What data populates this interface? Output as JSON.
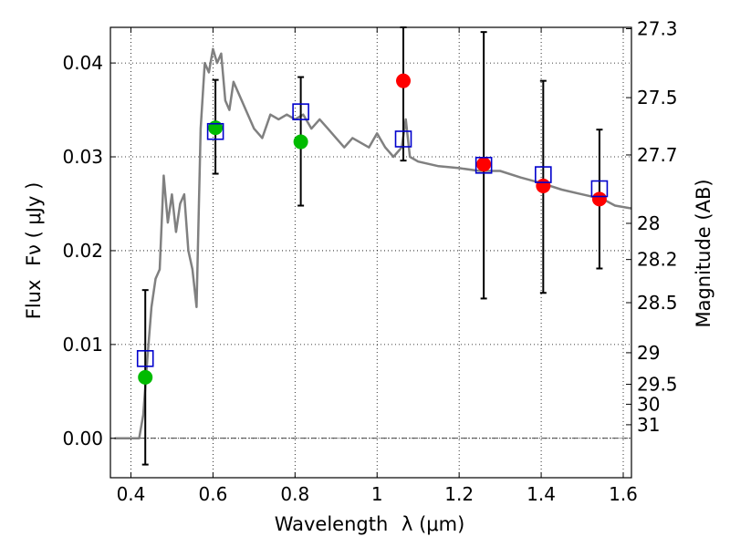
{
  "chart_data": {
    "type": "scatter",
    "title": "",
    "xlabel_text": "Wavelength",
    "xlabel_symbol": "λ (μm)",
    "ylabel_text": "Flux",
    "ylabel_symbol": "Fν ( μJy )",
    "y2label": "Magnitude (AB)",
    "xlim": [
      0.35,
      1.62
    ],
    "ylim": [
      -0.0042,
      0.0438
    ],
    "x_ticks": [
      0.4,
      0.6,
      0.8,
      1.0,
      1.2,
      1.4,
      1.6
    ],
    "x_tick_labels": [
      "0.4",
      "0.6",
      "0.8",
      "1",
      "1.2",
      "1.4",
      "1.6"
    ],
    "y_ticks": [
      0.0,
      0.01,
      0.02,
      0.03,
      0.04
    ],
    "y_tick_labels": [
      "0.00",
      "0.01",
      "0.02",
      "0.03",
      "0.04"
    ],
    "mag_ticks": [
      27.3,
      27.5,
      27.7,
      28,
      28.2,
      28.5,
      29,
      29.5,
      30,
      31
    ],
    "mag_tick_labels": [
      "27.3",
      "27.5",
      "27.7",
      "28",
      "28.2",
      "28.5",
      "29",
      "29.5",
      "30",
      "31"
    ],
    "grid": true,
    "grid_style": "dotted",
    "zero_line": true,
    "colors": {
      "model": "#808080",
      "detection": "#00bb00",
      "measurement": "#ff0000",
      "model_photometry": "#0000cc",
      "errorbar": "#000000"
    },
    "model_spectrum": {
      "x": [
        0.36,
        0.41,
        0.42,
        0.43,
        0.44,
        0.45,
        0.46,
        0.47,
        0.48,
        0.49,
        0.5,
        0.51,
        0.52,
        0.53,
        0.54,
        0.55,
        0.56,
        0.57,
        0.58,
        0.59,
        0.6,
        0.61,
        0.62,
        0.63,
        0.64,
        0.65,
        0.66,
        0.67,
        0.68,
        0.7,
        0.72,
        0.74,
        0.76,
        0.78,
        0.8,
        0.82,
        0.84,
        0.86,
        0.88,
        0.9,
        0.92,
        0.94,
        0.96,
        0.98,
        1.0,
        1.02,
        1.04,
        1.06,
        1.07,
        1.08,
        1.1,
        1.15,
        1.2,
        1.25,
        1.3,
        1.35,
        1.4,
        1.45,
        1.5,
        1.55,
        1.58,
        1.62
      ],
      "y": [
        0.0,
        0.0,
        0.0,
        0.0025,
        0.0085,
        0.014,
        0.017,
        0.018,
        0.028,
        0.023,
        0.026,
        0.022,
        0.025,
        0.026,
        0.02,
        0.018,
        0.014,
        0.033,
        0.04,
        0.039,
        0.0415,
        0.04,
        0.041,
        0.036,
        0.035,
        0.038,
        0.037,
        0.036,
        0.035,
        0.033,
        0.032,
        0.0345,
        0.034,
        0.0345,
        0.034,
        0.0345,
        0.033,
        0.034,
        0.033,
        0.032,
        0.031,
        0.032,
        0.0315,
        0.031,
        0.0325,
        0.031,
        0.03,
        0.031,
        0.034,
        0.03,
        0.0295,
        0.029,
        0.0288,
        0.0285,
        0.0285,
        0.0278,
        0.0272,
        0.0265,
        0.026,
        0.0255,
        0.0248,
        0.0245
      ]
    },
    "series": [
      {
        "marker": "circle",
        "color": "#00bb00",
        "points": [
          {
            "x": 0.435,
            "y": 0.0065
          },
          {
            "x": 0.606,
            "y": 0.0331
          },
          {
            "x": 0.814,
            "y": 0.0316
          }
        ]
      },
      {
        "marker": "circle",
        "color": "#ff0000",
        "points": [
          {
            "x": 1.064,
            "y": 0.0381
          },
          {
            "x": 1.26,
            "y": 0.0292
          },
          {
            "x": 1.405,
            "y": 0.0269
          },
          {
            "x": 1.542,
            "y": 0.0255
          }
        ]
      },
      {
        "marker": "open-square",
        "color": "#0000cc",
        "points": [
          {
            "x": 0.435,
            "y": 0.0085
          },
          {
            "x": 0.606,
            "y": 0.0327
          },
          {
            "x": 0.814,
            "y": 0.0348
          },
          {
            "x": 1.064,
            "y": 0.0319
          },
          {
            "x": 1.26,
            "y": 0.0291
          },
          {
            "x": 1.405,
            "y": 0.0281
          },
          {
            "x": 1.542,
            "y": 0.0266
          }
        ]
      }
    ],
    "error_bars": [
      {
        "x": 0.435,
        "low": -0.0028,
        "high": 0.0158
      },
      {
        "x": 0.606,
        "low": 0.0282,
        "high": 0.0382
      },
      {
        "x": 0.814,
        "low": 0.0248,
        "high": 0.0385
      },
      {
        "x": 1.064,
        "low": 0.0296,
        "high": 0.0438
      },
      {
        "x": 1.26,
        "low": 0.0149,
        "high": 0.0433
      },
      {
        "x": 1.405,
        "low": 0.0155,
        "high": 0.0381
      },
      {
        "x": 1.542,
        "low": 0.0181,
        "high": 0.0329
      }
    ]
  }
}
